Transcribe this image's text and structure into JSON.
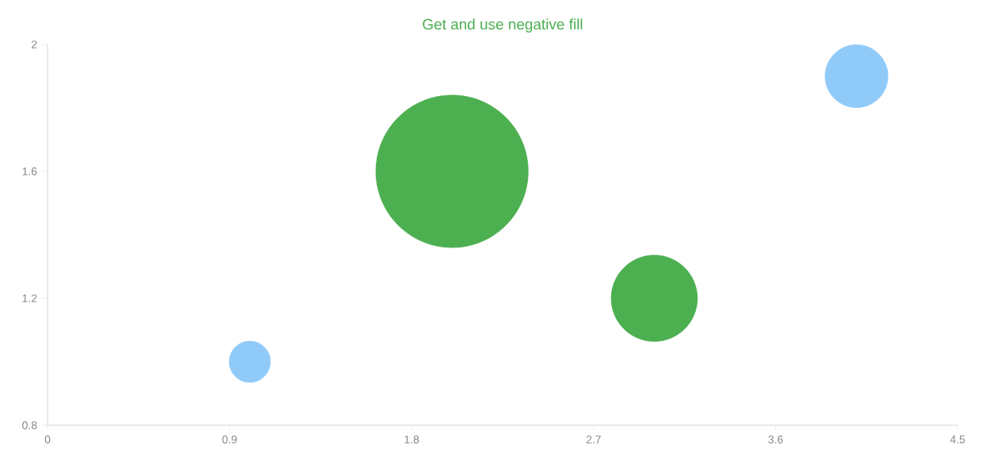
{
  "chart_data": {
    "type": "bubble",
    "title": "Get and use negative fill",
    "x": [
      1,
      2,
      3,
      4
    ],
    "values": [
      1,
      1.6,
      1.2,
      1.9
    ],
    "sizes": [
      0.073,
      1,
      0.32,
      0.17
    ],
    "colors": [
      "#90caf9",
      "#4caf50",
      "#4caf50",
      "#90caf9"
    ],
    "xlim": [
      0,
      4.5
    ],
    "xticks": [
      0,
      0.9,
      1.8,
      2.7,
      3.6,
      4.5
    ],
    "ylim": [
      0.8,
      2
    ],
    "yticks": [
      0.8,
      1.2,
      1.6,
      2
    ],
    "grid": false
  }
}
